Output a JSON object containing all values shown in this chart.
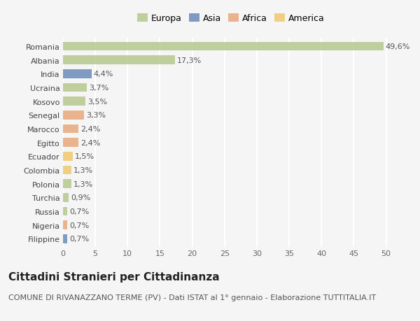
{
  "categories": [
    "Romania",
    "Albania",
    "India",
    "Ucraina",
    "Kosovo",
    "Senegal",
    "Marocco",
    "Egitto",
    "Ecuador",
    "Colombia",
    "Polonia",
    "Turchia",
    "Russia",
    "Nigeria",
    "Filippine"
  ],
  "values": [
    49.6,
    17.3,
    4.4,
    3.7,
    3.5,
    3.3,
    2.4,
    2.4,
    1.5,
    1.3,
    1.3,
    0.9,
    0.7,
    0.7,
    0.7
  ],
  "labels": [
    "49,6%",
    "17,3%",
    "4,4%",
    "3,7%",
    "3,5%",
    "3,3%",
    "2,4%",
    "2,4%",
    "1,5%",
    "1,3%",
    "1,3%",
    "0,9%",
    "0,7%",
    "0,7%",
    "0,7%"
  ],
  "colors": [
    "#b5c98e",
    "#b5c98e",
    "#6b8cba",
    "#b5c98e",
    "#b5c98e",
    "#e8a87c",
    "#e8a87c",
    "#e8a87c",
    "#f0c96e",
    "#f0c96e",
    "#b5c98e",
    "#b5c98e",
    "#b5c98e",
    "#e8a87c",
    "#6b8cba"
  ],
  "legend_labels": [
    "Europa",
    "Asia",
    "Africa",
    "America"
  ],
  "legend_colors": [
    "#b5c98e",
    "#6b8cba",
    "#e8a87c",
    "#f0c96e"
  ],
  "title": "Cittadini Stranieri per Cittadinanza",
  "subtitle": "COMUNE DI RIVANAZZANO TERME (PV) - Dati ISTAT al 1° gennaio - Elaborazione TUTTITALIA.IT",
  "xlim": [
    0,
    52
  ],
  "xticks": [
    0,
    5,
    10,
    15,
    20,
    25,
    30,
    35,
    40,
    45,
    50
  ],
  "background_color": "#f5f5f5",
  "bar_alpha": 0.85,
  "grid_color": "#ffffff",
  "title_fontsize": 11,
  "subtitle_fontsize": 8,
  "label_fontsize": 8,
  "tick_fontsize": 8,
  "legend_fontsize": 9
}
